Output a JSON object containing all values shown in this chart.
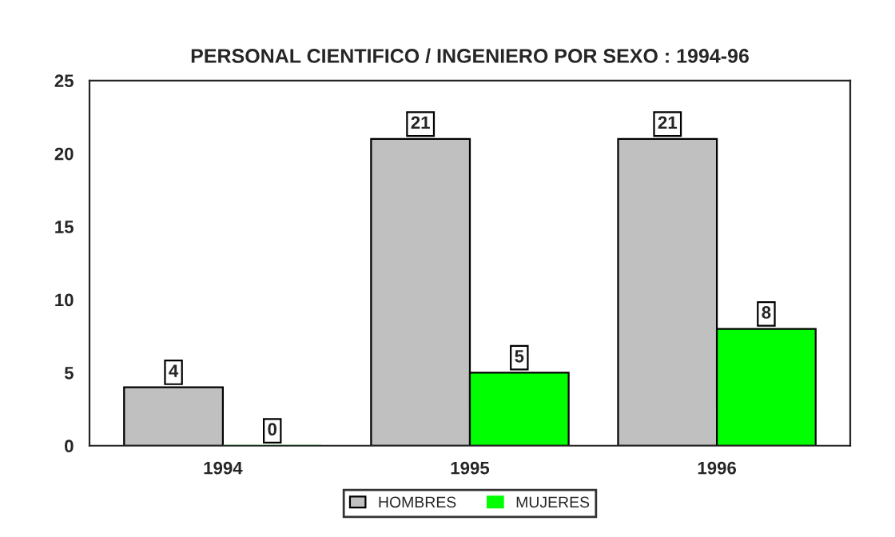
{
  "chart_data": {
    "type": "bar",
    "title": "PERSONAL CIENTIFICO / INGENIERO POR SEXO : 1994-96",
    "categories": [
      "1994",
      "1995",
      "1996"
    ],
    "series": [
      {
        "name": "HOMBRES",
        "color": "#c0c0c0",
        "values": [
          4,
          21,
          21
        ]
      },
      {
        "name": "MUJERES",
        "color": "#00ff00",
        "values": [
          0,
          5,
          8
        ]
      }
    ],
    "ylim": [
      0,
      25
    ],
    "yticks": [
      0,
      5,
      10,
      15,
      20,
      25
    ],
    "grid": false,
    "legend": "bottom",
    "data_labels": true
  }
}
